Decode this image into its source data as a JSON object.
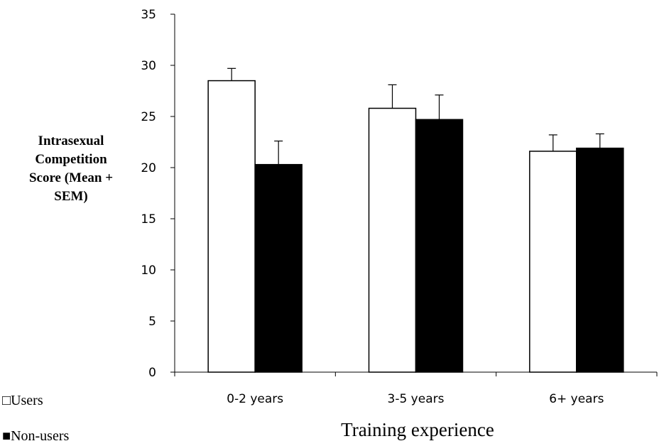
{
  "chart_data": {
    "type": "bar",
    "title": "",
    "xlabel": "Training experience",
    "ylabel_lines": [
      "Intrasexual",
      "Competition",
      "Score (Mean +",
      "SEM)"
    ],
    "categories": [
      "0-2 years",
      "3-5 years",
      "6+ years"
    ],
    "ylim": [
      0,
      35
    ],
    "yticks": [
      0,
      5,
      10,
      15,
      20,
      25,
      30,
      35
    ],
    "grid": false,
    "legend_position": "bottom-left",
    "series": [
      {
        "name": "Users",
        "values": [
          28.5,
          25.8,
          21.6
        ],
        "errors": [
          1.2,
          2.3,
          1.6
        ],
        "fill": "#ffffff",
        "stroke": "#000000",
        "legend_marker": "□"
      },
      {
        "name": "Non-users",
        "values": [
          20.3,
          24.7,
          21.9
        ],
        "errors": [
          2.3,
          2.4,
          1.4
        ],
        "fill": "#000000",
        "stroke": "#000000",
        "legend_marker": "■"
      }
    ]
  }
}
